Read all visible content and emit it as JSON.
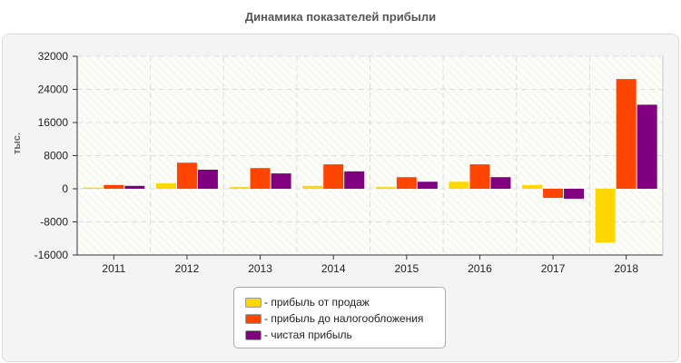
{
  "chart_data": {
    "type": "bar",
    "title": "Динамика показателей прибыли",
    "ylabel": "тыс.",
    "xlabel": "",
    "ylim": [
      -16000,
      32000
    ],
    "yticks": [
      32000,
      24000,
      16000,
      8000,
      0,
      -8000,
      -16000
    ],
    "grid": true,
    "legend_position": "bottom",
    "categories": [
      "2011",
      "2012",
      "2013",
      "2014",
      "2015",
      "2016",
      "2017",
      "2018"
    ],
    "series": [
      {
        "name": "- прибыль от продаж",
        "color": "#FFD700",
        "values": [
          300,
          1300,
          400,
          700,
          400,
          1700,
          900,
          -13000
        ]
      },
      {
        "name": "- прибыль до налогообложения",
        "color": "#FF4500",
        "values": [
          900,
          6300,
          5000,
          5900,
          2800,
          5900,
          -2200,
          26500
        ]
      },
      {
        "name": "- чистая прибыль",
        "color": "#800080",
        "values": [
          700,
          4600,
          3700,
          4200,
          1700,
          2800,
          -2400,
          20300
        ]
      }
    ]
  }
}
